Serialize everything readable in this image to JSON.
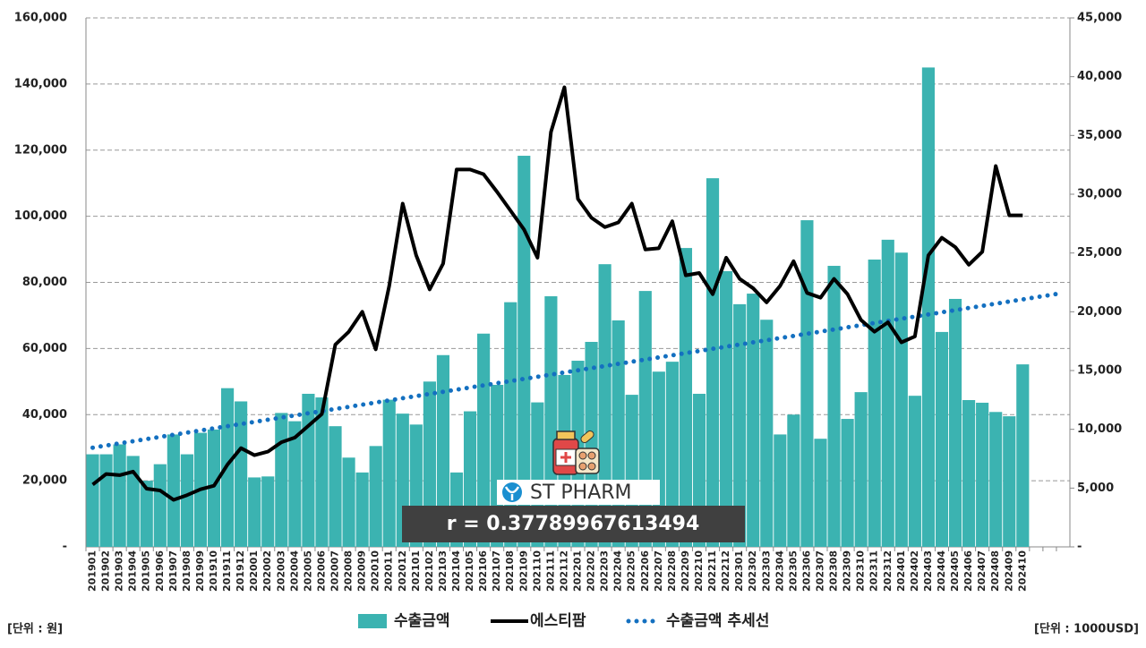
{
  "chart_data": {
    "type": "bar_line",
    "categories": [
      "201901",
      "201902",
      "201903",
      "201904",
      "201905",
      "201906",
      "201907",
      "201908",
      "201909",
      "201910",
      "201911",
      "201912",
      "202001",
      "202002",
      "202003",
      "202004",
      "202005",
      "202006",
      "202007",
      "202008",
      "202009",
      "202010",
      "202011",
      "202012",
      "202101",
      "202102",
      "202103",
      "202104",
      "202105",
      "202106",
      "202107",
      "202108",
      "202109",
      "202110",
      "202111",
      "202112",
      "202201",
      "202202",
      "202203",
      "202204",
      "202205",
      "202206",
      "202207",
      "202208",
      "202209",
      "202210",
      "202211",
      "202212",
      "202301",
      "202302",
      "202303",
      "202304",
      "202305",
      "202306",
      "202307",
      "202308",
      "202309",
      "202310",
      "202311",
      "202312",
      "202401",
      "202402",
      "202403",
      "202404",
      "202405",
      "202406",
      "202407",
      "202408",
      "202409",
      "202410",
      null,
      null,
      null
    ],
    "series": [
      {
        "name": "수출금액",
        "type": "bar",
        "axis": "y",
        "color": "#3bb3b1",
        "values": [
          28000,
          28000,
          31000,
          27500,
          20000,
          25000,
          34000,
          28000,
          34500,
          35500,
          48000,
          44000,
          21000,
          21300,
          40500,
          38000,
          46300,
          45200,
          36500,
          27000,
          22500,
          30500,
          44500,
          40300,
          37000,
          50000,
          58000,
          22500,
          41000,
          64500,
          49000,
          74000,
          118300,
          43700,
          75800,
          52000,
          56300,
          62000,
          85500,
          68500,
          46000,
          77400,
          53000,
          56000,
          90400,
          46300,
          111500,
          83400,
          73400,
          76600,
          68700,
          34000,
          40000,
          98800,
          32700,
          85000,
          38700,
          46800,
          86900,
          92900,
          89000,
          45700,
          145000,
          65000,
          75000,
          44400,
          43600,
          40800,
          39500,
          55200,
          null,
          null,
          null
        ]
      },
      {
        "name": "에스티팜",
        "type": "line",
        "axis": "y2",
        "color": "#000000",
        "values": [
          5300,
          6200,
          6100,
          6400,
          4950,
          4800,
          4000,
          4400,
          4900,
          5200,
          7000,
          8400,
          7800,
          8100,
          8900,
          9300,
          10300,
          11300,
          17200,
          18300,
          20000,
          16800,
          22200,
          29200,
          24800,
          21900,
          24100,
          32100,
          32100,
          31700,
          30200,
          28600,
          27000,
          24600,
          35300,
          39100,
          29600,
          28000,
          27200,
          27600,
          29200,
          25300,
          25400,
          27700,
          23100,
          23300,
          21500,
          24600,
          22800,
          22000,
          20800,
          22200,
          24300,
          21600,
          21200,
          22800,
          21500,
          19300,
          18300,
          19100,
          17400,
          17900,
          24800,
          26300,
          25500,
          24000,
          25100,
          32400,
          28200,
          28200,
          null,
          null,
          null
        ]
      },
      {
        "name": "수출금액 추세선",
        "type": "trend",
        "axis": "y",
        "color": "#1470c0",
        "values": [
          30000,
          30650,
          31300,
          31950,
          32600,
          33250,
          33900,
          34550,
          35200,
          35850,
          36500,
          37150,
          37800,
          38450,
          39100,
          39750,
          40400,
          41050,
          41700,
          42350,
          43000,
          43650,
          44300,
          44950,
          45600,
          46250,
          46900,
          47550,
          48200,
          48850,
          49500,
          50150,
          50800,
          51450,
          52100,
          52750,
          53400,
          54050,
          54700,
          55350,
          56000,
          56650,
          57300,
          57950,
          58600,
          59250,
          59900,
          60550,
          61200,
          61850,
          62500,
          63150,
          63800,
          64450,
          65100,
          65750,
          66400,
          67050,
          67700,
          68350,
          69000,
          69650,
          70300,
          70950,
          71600,
          72250,
          72900,
          73550,
          74200,
          74850,
          75500,
          76150,
          76800
        ]
      }
    ],
    "ylim": [
      0,
      160000
    ],
    "yticks": [
      {
        "value": 0,
        "label": "-"
      },
      {
        "value": 20000,
        "label": "20,000"
      },
      {
        "value": 40000,
        "label": "40,000"
      },
      {
        "value": 60000,
        "label": "60,000"
      },
      {
        "value": 80000,
        "label": "80,000"
      },
      {
        "value": 100000,
        "label": "100,000"
      },
      {
        "value": 120000,
        "label": "120,000"
      },
      {
        "value": 140000,
        "label": "140,000"
      },
      {
        "value": 160000,
        "label": "160,000"
      }
    ],
    "y2lim": [
      0,
      45000
    ],
    "y2ticks": [
      {
        "value": 0,
        "label": "-"
      },
      {
        "value": 5000,
        "label": "5,000"
      },
      {
        "value": 10000,
        "label": "10,000"
      },
      {
        "value": 15000,
        "label": "15,000"
      },
      {
        "value": 20000,
        "label": "20,000"
      },
      {
        "value": 25000,
        "label": "25,000"
      },
      {
        "value": 30000,
        "label": "30,000"
      },
      {
        "value": 35000,
        "label": "35,000"
      },
      {
        "value": 40000,
        "label": "40,000"
      },
      {
        "value": 45000,
        "label": "45,000"
      }
    ],
    "grid": true,
    "y_unit_label": "[단위 : 원]",
    "y2_unit_label": "[단위 : 1000USD]",
    "annotation": "r = 0.37789967613494",
    "logo_text": "ST PHARM",
    "legend": "bottom"
  }
}
